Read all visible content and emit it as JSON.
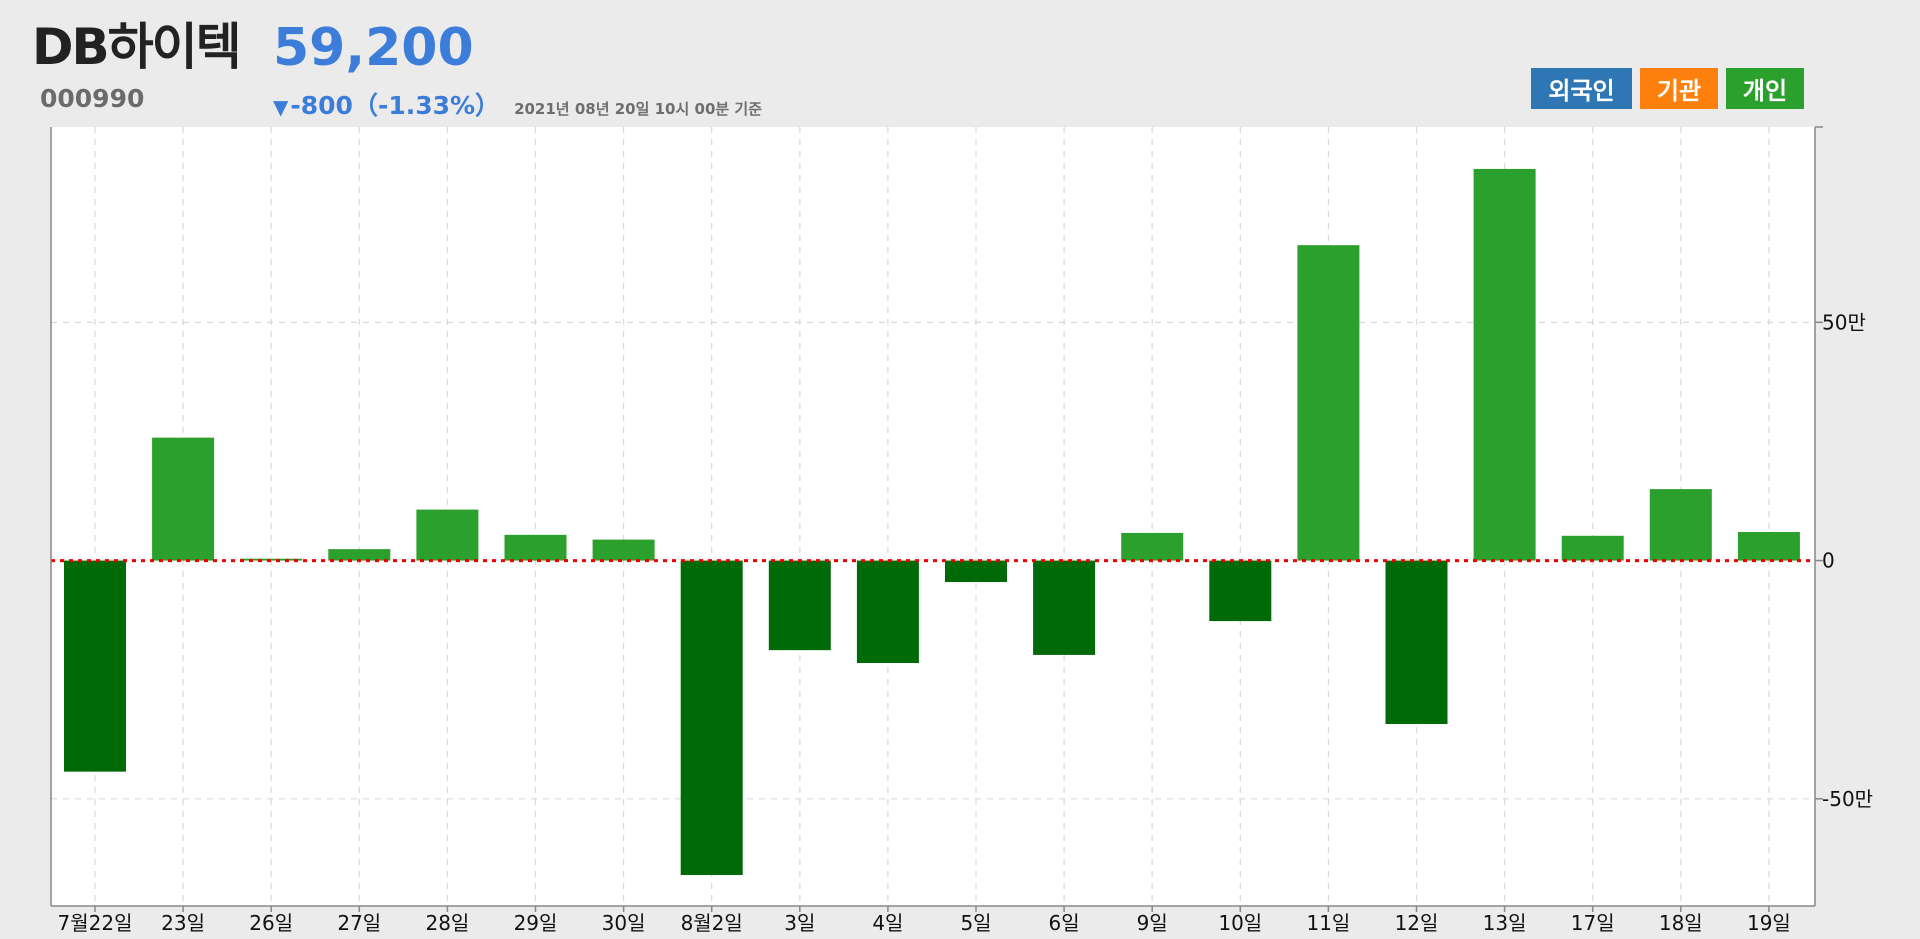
{
  "header": {
    "stock_name": "DB하이텍",
    "stock_code": "000990",
    "price": "59,200",
    "change_arrow": "▼",
    "change": "-800（-1.33%）",
    "timestamp": "2021년 08년 20일 10시 00분 기준"
  },
  "legend": [
    {
      "label": "외국인",
      "color": "#2f77b4"
    },
    {
      "label": "기관",
      "color": "#fd7f0e"
    },
    {
      "label": "개인",
      "color": "#2ca02c"
    }
  ],
  "colors": {
    "positive_bar": "#2ca02c",
    "negative_bar": "#006a08",
    "zero_line": "#ee0000",
    "grid": "#d8d8d8",
    "price": "#3b7dd8"
  },
  "chart_data": {
    "type": "bar",
    "series": [
      {
        "name": "개인",
        "values": [
          -443000,
          258000,
          4000,
          24000,
          107000,
          54000,
          44000,
          -660000,
          -188000,
          -215000,
          -45000,
          -198000,
          58000,
          -127000,
          662000,
          -343000,
          822000,
          52000,
          150000,
          60000
        ]
      }
    ],
    "categories": [
      "7월22일",
      "23일",
      "26일",
      "27일",
      "28일",
      "29일",
      "30일",
      "8월2일",
      "3일",
      "4일",
      "5일",
      "6일",
      "9일",
      "10일",
      "11일",
      "12일",
      "13일",
      "17일",
      "18일",
      "19일"
    ],
    "y_ticks": [
      {
        "value": 500000,
        "label": "50만"
      },
      {
        "value": 0,
        "label": "0"
      },
      {
        "value": -500000,
        "label": "-50만"
      }
    ],
    "ylim": [
      -725000,
      910000
    ],
    "grid": true,
    "zero_line_style": "dotted"
  }
}
